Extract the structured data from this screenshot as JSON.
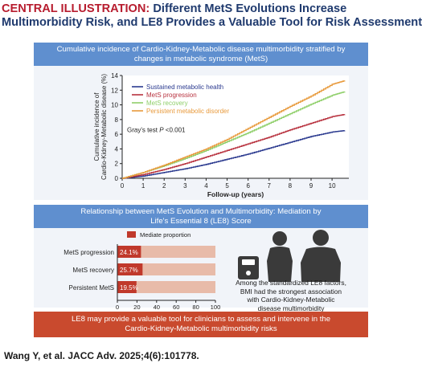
{
  "title": {
    "label": "CENTRAL ILLUSTRATION:",
    "line1_rest": "Different MetS Evolutions Increase",
    "line2": "Multimorbidity Risk, and LE8 Provides a Valuable Tool for Risk Assessment"
  },
  "top_panel": {
    "header_line1": "Cumulative incidence of Cardio-Kidney-Metabolic disease multimorbidity stratified by",
    "header_line2": "changes in metabolic syndrome (MetS)",
    "test_prefix": "Gray's test ",
    "test_p": "P",
    "test_suffix": " <0.001",
    "ylabel_line1": "Cumulative incidence of",
    "ylabel_line2": "Cardio-Kidney-Metabolic disease (%)"
  },
  "bottom_panel": {
    "header_line1": "Relationship between MetS Evolution and Multimorbidity: Mediation by",
    "header_line2": "Life's Essential 8 (LE8) Score",
    "legend_label": "Mediate proportion",
    "right_text": "Among the standardized LE8 factors, BMI had the strongest association with Cardio-Kidney-Metabolic disease multimorbidity"
  },
  "footer": {
    "line1": "LE8 may provide a valuable tool for clinicians to assess and intervene in the",
    "line2": "Cardio-Kidney-Metabolic multimorbidity risks"
  },
  "citation": "Wang Y, et al. JACC Adv. 2025;4(6):101778.",
  "colors": {
    "sustained": "#2b3a8f",
    "progression": "#b8323f",
    "recovery": "#8fcf6a",
    "persistent": "#e89a3c",
    "bar_mediate": "#c0392b",
    "bar_rest": "#e8bba9",
    "panel_head": "#5f8fcf",
    "footer": "#c94a2e"
  },
  "icons": [
    "scale-icon",
    "female-silhouette-icon",
    "male-silhouette-icon"
  ],
  "chart_data": [
    {
      "type": "line",
      "xlabel": "Follow-up (years)",
      "ylabel": "Cumulative incidence of Cardio-Kidney-Metabolic disease (%)",
      "xlim": [
        0,
        10.8
      ],
      "ylim": [
        0,
        14
      ],
      "xticks": [
        0,
        1,
        2,
        3,
        4,
        5,
        6,
        7,
        8,
        9,
        10
      ],
      "yticks": [
        0,
        2,
        4,
        6,
        8,
        10,
        12,
        14
      ],
      "legend_position": "top-left",
      "series": [
        {
          "name": "Sustained metabolic health",
          "color": "#2b3a8f",
          "x": [
            0,
            1,
            2,
            3,
            4,
            5,
            6,
            7,
            8,
            9,
            10,
            10.6
          ],
          "y": [
            0,
            0.3,
            0.8,
            1.3,
            1.9,
            2.6,
            3.3,
            4.1,
            4.9,
            5.7,
            6.3,
            6.5
          ]
        },
        {
          "name": "MetS progression",
          "color": "#b8323f",
          "x": [
            0,
            1,
            2,
            3,
            4,
            5,
            6,
            7,
            8,
            9,
            10,
            10.6
          ],
          "y": [
            0,
            0.5,
            1.2,
            2.0,
            2.9,
            3.8,
            4.7,
            5.6,
            6.6,
            7.5,
            8.4,
            8.7
          ]
        },
        {
          "name": "MetS recovery",
          "color": "#8fcf6a",
          "x": [
            0,
            1,
            2,
            3,
            4,
            5,
            6,
            7,
            8,
            9,
            10,
            10.6
          ],
          "y": [
            0,
            0.8,
            1.7,
            2.7,
            3.8,
            5.0,
            6.2,
            7.5,
            8.8,
            10.1,
            11.3,
            11.8
          ]
        },
        {
          "name": "Persistent metabolic disorder",
          "color": "#e89a3c",
          "x": [
            0,
            1,
            2,
            3,
            4,
            5,
            6,
            7,
            8,
            9,
            10,
            10.6
          ],
          "y": [
            0,
            0.8,
            1.8,
            2.9,
            4.0,
            5.3,
            6.8,
            8.3,
            9.8,
            11.2,
            12.8,
            13.3
          ]
        }
      ]
    },
    {
      "type": "bar",
      "orientation": "horizontal",
      "categories": [
        "MetS progression",
        "MetS recovery",
        "Persistent MetS"
      ],
      "values": [
        24.1,
        25.7,
        19.5
      ],
      "data_labels": [
        "24.1%",
        "25.7%",
        "19.5%"
      ],
      "xlim": [
        0,
        100
      ],
      "xticks": [
        0,
        20,
        40,
        60,
        80,
        100
      ],
      "legend": [
        "Mediate proportion"
      ]
    }
  ]
}
